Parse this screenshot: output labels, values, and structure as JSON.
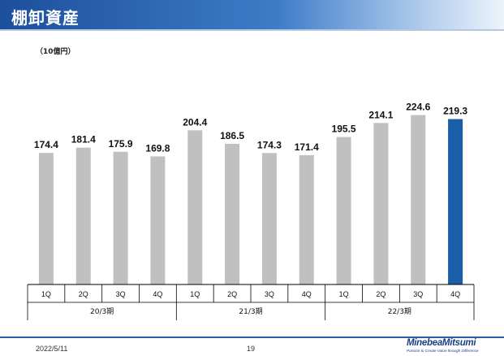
{
  "header": {
    "title": "棚卸資産"
  },
  "unit": "（10億円）",
  "chart_data": {
    "type": "bar",
    "categories": [
      "1Q",
      "2Q",
      "3Q",
      "4Q",
      "1Q",
      "2Q",
      "3Q",
      "4Q",
      "1Q",
      "2Q",
      "3Q",
      "4Q"
    ],
    "groups": [
      {
        "label": "20/3期",
        "start": 0,
        "count": 4
      },
      {
        "label": "21/3期",
        "start": 4,
        "count": 4
      },
      {
        "label": "22/3期",
        "start": 8,
        "count": 4
      }
    ],
    "values": [
      174.4,
      181.4,
      175.9,
      169.8,
      204.4,
      186.5,
      174.3,
      171.4,
      195.5,
      214.1,
      224.6,
      219.3
    ],
    "data_labels": [
      "174.4",
      "181.4",
      "175.9",
      "169.8",
      "204.4",
      "186.5",
      "174.3",
      "171.4",
      "195.5",
      "214.1",
      "224.6",
      "219.3"
    ],
    "highlight_index": 11,
    "ylim": [
      0,
      230
    ],
    "colors": {
      "bar": "#c0c0c0",
      "highlight": "#1a5ea8",
      "axis": "#000000"
    },
    "grid": false,
    "legend": "none"
  },
  "footer": {
    "date": "2022/5/11",
    "page": "19",
    "logo_text": "MinebeaMitsumi",
    "logo_tagline": "Passion to Create Value through Difference"
  }
}
